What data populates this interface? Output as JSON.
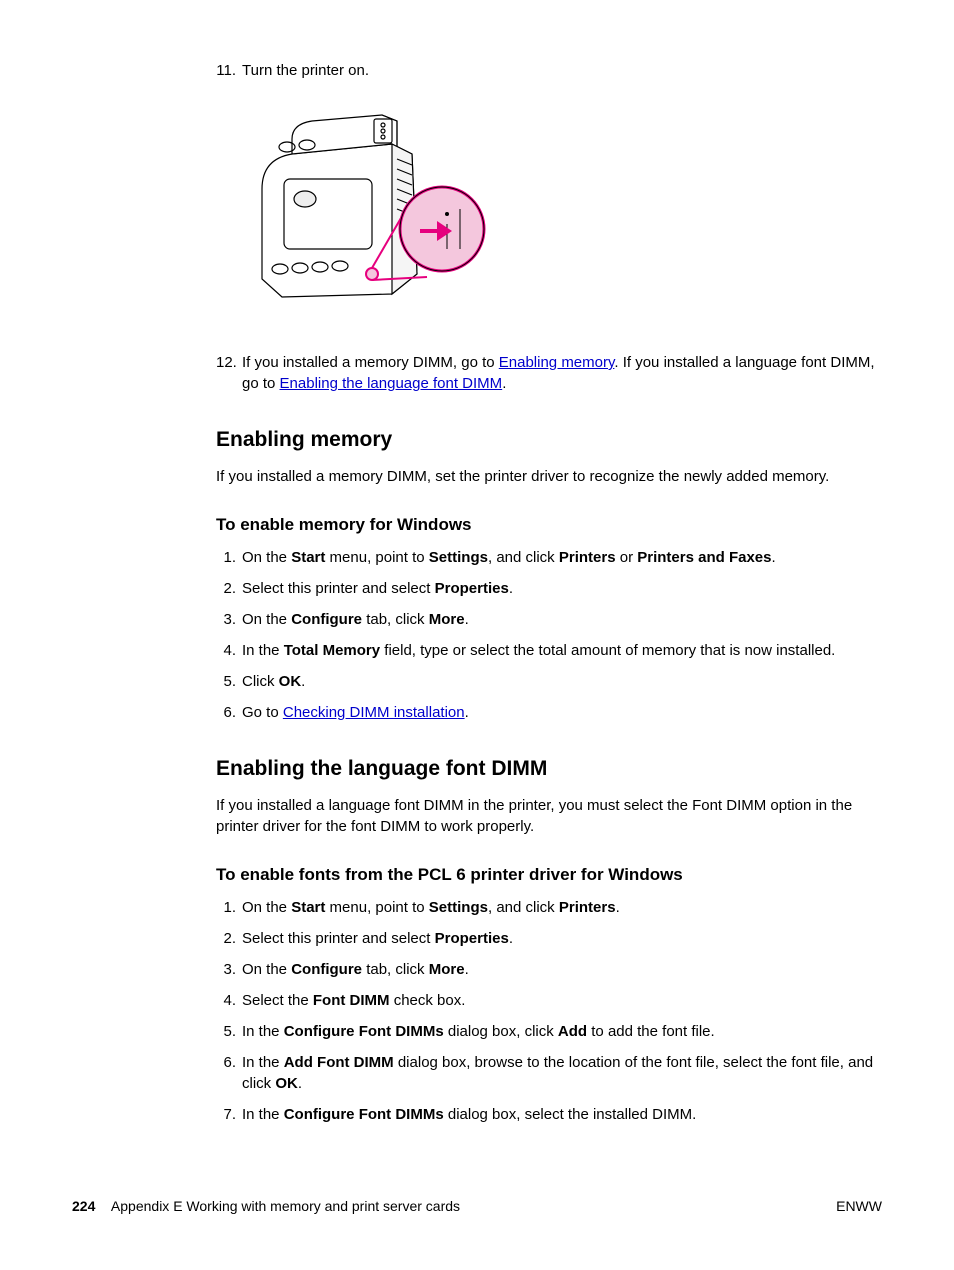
{
  "steps_top": {
    "n11": "11.",
    "t11": "Turn the printer on.",
    "n12": "12.",
    "t12a": "If you installed a memory DIMM, go to ",
    "link12a": "Enabling memory",
    "t12b": ". If you installed a language font DIMM, go to ",
    "link12b": "Enabling the language font DIMM",
    "t12c": "."
  },
  "figure": {
    "colors": {
      "stroke": "#000000",
      "accent": "#e6007e",
      "button_fill": "#f4c7dd",
      "body_fill": "#ffffff"
    }
  },
  "sec1": {
    "h2": "Enabling memory",
    "intro": "If you installed a memory DIMM, set the printer driver to recognize the newly added memory.",
    "h3": "To enable memory for Windows",
    "steps": [
      {
        "n": "1.",
        "parts": [
          "On the ",
          {
            "b": "Start"
          },
          " menu, point to ",
          {
            "b": "Settings"
          },
          ", and click ",
          {
            "b": "Printers"
          },
          " or ",
          {
            "b": "Printers and Faxes"
          },
          "."
        ]
      },
      {
        "n": "2.",
        "parts": [
          "Select this printer and select ",
          {
            "b": "Properties"
          },
          "."
        ]
      },
      {
        "n": "3.",
        "parts": [
          "On the ",
          {
            "b": "Configure"
          },
          " tab, click ",
          {
            "b": "More"
          },
          "."
        ]
      },
      {
        "n": "4.",
        "parts": [
          "In the ",
          {
            "b": "Total Memory"
          },
          " field, type or select the total amount of memory that is now installed."
        ]
      },
      {
        "n": "5.",
        "parts": [
          "Click ",
          {
            "b": "OK"
          },
          "."
        ]
      },
      {
        "n": "6.",
        "parts": [
          "Go to ",
          {
            "link": "Checking DIMM installation"
          },
          "."
        ]
      }
    ]
  },
  "sec2": {
    "h2": "Enabling the language font DIMM",
    "intro": "If you installed a language font DIMM in the printer, you must select the Font DIMM option in the printer driver for the font DIMM to work properly.",
    "h3": "To enable fonts from the PCL 6 printer driver for Windows",
    "steps": [
      {
        "n": "1.",
        "parts": [
          "On the ",
          {
            "b": "Start"
          },
          " menu, point to ",
          {
            "b": "Settings"
          },
          ", and click ",
          {
            "b": "Printers"
          },
          "."
        ]
      },
      {
        "n": "2.",
        "parts": [
          "Select this printer and select ",
          {
            "b": "Properties"
          },
          "."
        ]
      },
      {
        "n": "3.",
        "parts": [
          "On the ",
          {
            "b": "Configure"
          },
          " tab, click ",
          {
            "b": "More"
          },
          "."
        ]
      },
      {
        "n": "4.",
        "parts": [
          "Select the ",
          {
            "b": "Font DIMM"
          },
          " check box."
        ]
      },
      {
        "n": "5.",
        "parts": [
          "In the ",
          {
            "b": "Configure Font DIMMs"
          },
          " dialog box, click ",
          {
            "b": "Add"
          },
          " to add the font file."
        ]
      },
      {
        "n": "6.",
        "parts": [
          "In the ",
          {
            "b": "Add Font DIMM"
          },
          " dialog box, browse to the location of the font file, select the font file, and click ",
          {
            "b": "OK"
          },
          "."
        ]
      },
      {
        "n": "7.",
        "parts": [
          "In the ",
          {
            "b": "Configure Font DIMMs"
          },
          " dialog box, select the installed DIMM."
        ]
      }
    ]
  },
  "footer": {
    "page": "224",
    "appendix": "Appendix E   Working with memory and print server cards",
    "right": "ENWW"
  }
}
